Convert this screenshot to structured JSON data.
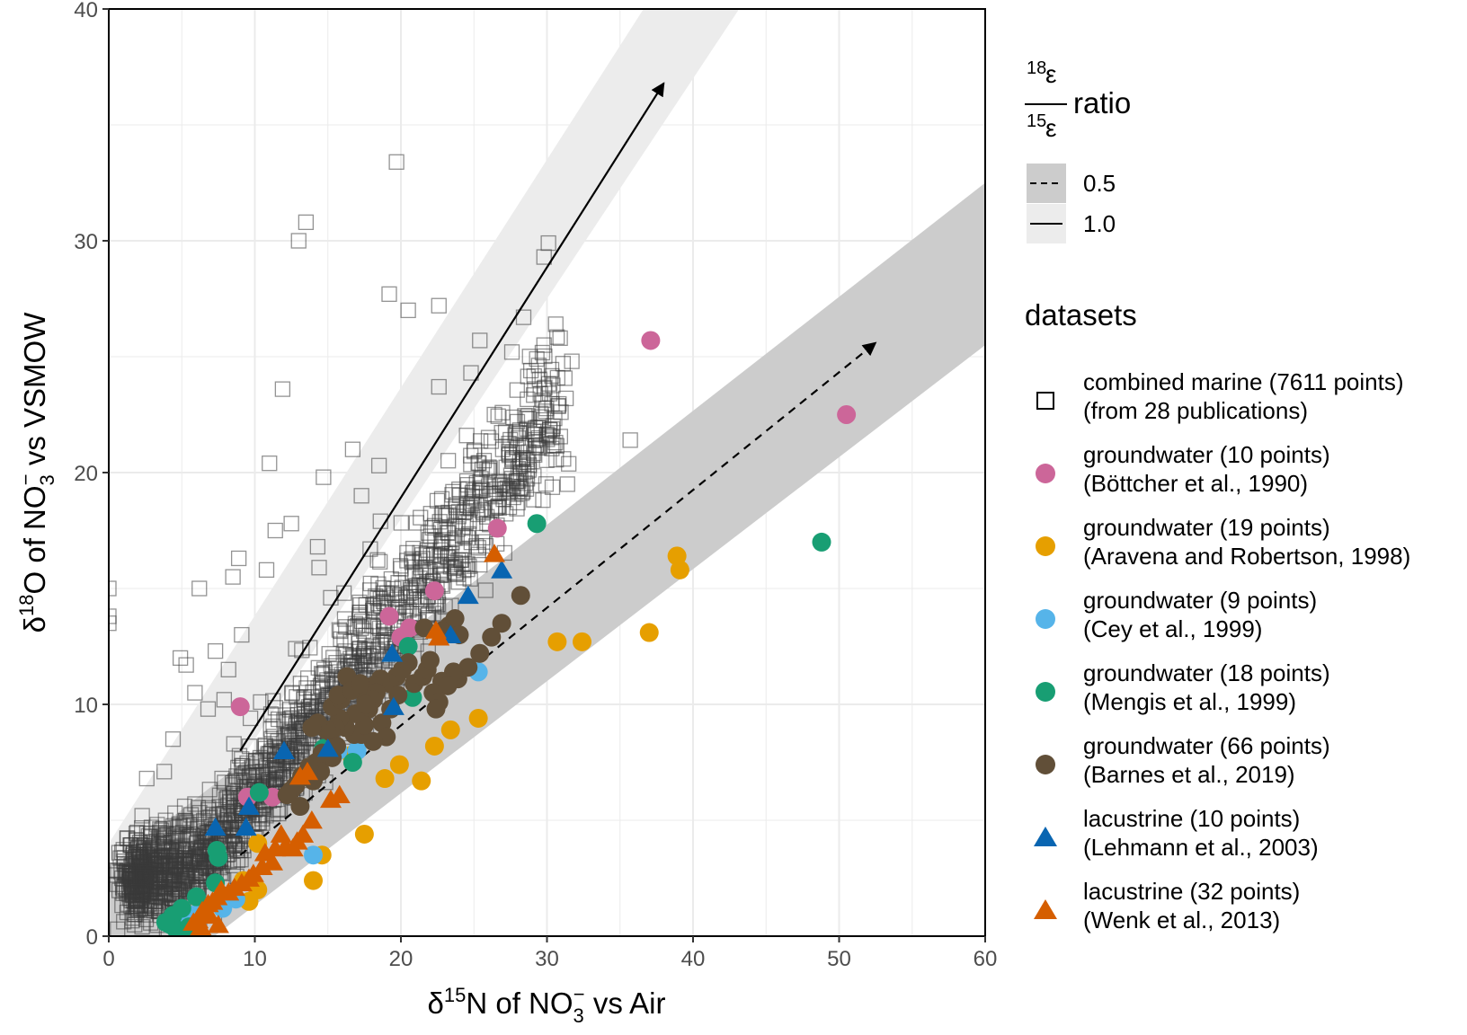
{
  "chart_data": {
    "type": "scatter",
    "x_axis": {
      "label": {
        "prefix": "δ",
        "sup": "15",
        "main": "N of NO",
        "sub": "3",
        "sup2": "−",
        "suffix": " vs Air"
      },
      "range": [
        0,
        60
      ],
      "ticks": [
        "0",
        "10",
        "20",
        "30",
        "40",
        "50",
        "60"
      ]
    },
    "y_axis": {
      "label": {
        "prefix": "δ",
        "sup": "18",
        "main": "O of NO",
        "sub": "3",
        "sup2": "−",
        "suffix": " vs VSMOW"
      },
      "range": [
        0,
        40
      ],
      "ticks": [
        "0",
        "10",
        "20",
        "30",
        "40"
      ]
    },
    "grid": true,
    "legend_position": "right",
    "ratio_legend": {
      "title": {
        "num_sup": "18",
        "den_sup": "15",
        "letter": "ε",
        "word": "ratio"
      },
      "items": [
        {
          "label": "0.5",
          "linestyle": "dashed",
          "band_color": "#cccccc"
        },
        {
          "label": "1.0",
          "linestyle": "solid",
          "band_color": "#ececec"
        }
      ]
    },
    "bands": [
      {
        "ratio": "1.0",
        "color": "#ececec",
        "x": [
          0,
          60
        ],
        "y_lower": [
          -1,
          56
        ],
        "y_upper": [
          4,
          63
        ]
      },
      {
        "ratio": "0.5",
        "color": "#cccccc",
        "x": [
          0,
          60
        ],
        "y_lower": [
          -3.5,
          25.5
        ],
        "y_upper": [
          3,
          32.5
        ]
      }
    ],
    "arrows": [
      {
        "ratio": "1.0",
        "linestyle": "solid",
        "start": [
          9,
          8
        ],
        "end": [
          38,
          36.8
        ]
      },
      {
        "ratio": "0.5",
        "linestyle": "dashed",
        "start": [
          9,
          3.5
        ],
        "end": [
          52.5,
          25.6
        ]
      }
    ],
    "datasets_title": "datasets",
    "series": [
      {
        "name": "combined marine (7611 points)",
        "name2": "(from 28 publications)",
        "shape": "open-square",
        "color": "#3a3a3a",
        "cloud": {
          "points": 1600,
          "x_range": [
            1.5,
            31
          ],
          "note": ""
        },
        "points": [
          [
            0,
            15
          ],
          [
            0,
            13.8
          ],
          [
            0,
            13.5
          ],
          [
            4.9,
            12
          ],
          [
            5.3,
            11.7
          ],
          [
            6.2,
            15
          ],
          [
            5.9,
            10.5
          ],
          [
            7.3,
            12.3
          ],
          [
            8.5,
            15.5
          ],
          [
            9.1,
            13
          ],
          [
            8.9,
            16.3
          ],
          [
            10.8,
            15.8
          ],
          [
            11,
            20.4
          ],
          [
            11.4,
            17.5
          ],
          [
            11.9,
            23.6
          ],
          [
            12.5,
            17.8
          ],
          [
            13.5,
            30.8
          ],
          [
            13,
            30
          ],
          [
            14.3,
            16.8
          ],
          [
            14.7,
            19.8
          ],
          [
            16.7,
            21
          ],
          [
            17.3,
            19
          ],
          [
            18.5,
            20.3
          ],
          [
            19.2,
            27.7
          ],
          [
            19.7,
            33.4
          ],
          [
            20.5,
            27
          ],
          [
            22.6,
            27.2
          ],
          [
            24.8,
            24.3
          ],
          [
            25.4,
            25.7
          ],
          [
            27.6,
            25.2
          ],
          [
            28.4,
            26.7
          ],
          [
            29.8,
            29.3
          ],
          [
            30.1,
            29.9
          ],
          [
            29.3,
            24.9
          ],
          [
            30.6,
            26.4
          ],
          [
            31.1,
            24.7
          ],
          [
            31.3,
            23.2
          ],
          [
            31.4,
            19.5
          ],
          [
            31.7,
            24.8
          ],
          [
            35.7,
            21.4
          ],
          [
            30.9,
            25.8
          ],
          [
            29.8,
            25.5
          ],
          [
            28.9,
            24.4
          ],
          [
            20.8,
            15.7
          ],
          [
            21.3,
            16.2
          ],
          [
            15.2,
            14.6
          ],
          [
            14.4,
            15.9
          ],
          [
            22.6,
            23.7
          ],
          [
            0.6,
            0.3
          ],
          [
            0.9,
            2.5
          ],
          [
            0.7,
            3.6
          ],
          [
            1.9,
            2.2
          ],
          [
            2.6,
            6.8
          ],
          [
            3.8,
            7.1
          ],
          [
            4.4,
            8.5
          ],
          [
            5.2,
            5.6
          ],
          [
            6.8,
            9.8
          ],
          [
            7.9,
            10.2
          ],
          [
            8.2,
            11.5
          ],
          [
            16.1,
            14.8
          ],
          [
            17.9,
            16.7
          ],
          [
            18.6,
            17.9
          ],
          [
            24.5,
            21.6
          ],
          [
            12.8,
            12.4
          ],
          [
            10.4,
            10.1
          ],
          [
            9.7,
            9.4
          ],
          [
            3.1,
            1.1
          ],
          [
            1.4,
            1.8
          ],
          [
            5.9,
            5.7
          ],
          [
            6.2,
            3.2
          ],
          [
            7.9,
            4.1
          ]
        ]
      },
      {
        "name": "groundwater (10 points)",
        "name2": "(Böttcher et al., 1990)",
        "shape": "circle",
        "color": "#cc6699",
        "points": [
          [
            37.1,
            25.7
          ],
          [
            50.5,
            22.5
          ],
          [
            26.6,
            17.6
          ],
          [
            22.3,
            14.9
          ],
          [
            19.2,
            13.8
          ],
          [
            20.6,
            13.3
          ],
          [
            9,
            9.9
          ],
          [
            9.5,
            6
          ],
          [
            11.2,
            6
          ],
          [
            20,
            12.9
          ]
        ]
      },
      {
        "name": "groundwater (19 points)",
        "name2": "(Aravena and Robertson, 1998)",
        "shape": "circle",
        "color": "#e69f00",
        "points": [
          [
            38.9,
            16.4
          ],
          [
            39.1,
            15.8
          ],
          [
            37,
            13.1
          ],
          [
            30.7,
            12.7
          ],
          [
            32.4,
            12.7
          ],
          [
            25.3,
            9.4
          ],
          [
            23.4,
            8.9
          ],
          [
            22.3,
            8.2
          ],
          [
            19.9,
            7.4
          ],
          [
            18.9,
            6.8
          ],
          [
            21.4,
            6.7
          ],
          [
            17.5,
            4.4
          ],
          [
            14.6,
            3.5
          ],
          [
            14,
            2.4
          ],
          [
            9.2,
            2.4
          ],
          [
            10.2,
            4
          ],
          [
            16.6,
            7.8
          ],
          [
            10.2,
            2
          ],
          [
            9.6,
            1.5
          ]
        ]
      },
      {
        "name": "groundwater (9 points)",
        "name2": "(Cey et al., 1999)",
        "shape": "circle",
        "color": "#56b4e9",
        "points": [
          [
            25.3,
            11.4
          ],
          [
            17,
            8
          ],
          [
            15.7,
            8
          ],
          [
            14,
            3.5
          ],
          [
            8.7,
            1.6
          ],
          [
            7.8,
            1.2
          ],
          [
            6.1,
            1
          ],
          [
            5.2,
            0.6
          ],
          [
            4.6,
            0.5
          ]
        ]
      },
      {
        "name": "groundwater (18 points)",
        "name2": "(Mengis et al., 1999)",
        "shape": "circle",
        "color": "#189e73",
        "points": [
          [
            48.8,
            17
          ],
          [
            29.3,
            17.8
          ],
          [
            20.5,
            12.5
          ],
          [
            20.8,
            10.3
          ],
          [
            16.7,
            7.5
          ],
          [
            14.7,
            8.1
          ],
          [
            10.3,
            6.2
          ],
          [
            7.4,
            3.7
          ],
          [
            7.5,
            3.4
          ],
          [
            7.3,
            2.3
          ],
          [
            6,
            1.7
          ],
          [
            5,
            1.2
          ],
          [
            4.4,
            0.9
          ],
          [
            4.2,
            0.5
          ],
          [
            4.6,
            0.3
          ],
          [
            5.5,
            0.4
          ],
          [
            3.9,
            0.6
          ],
          [
            4.9,
            0.2
          ]
        ]
      },
      {
        "name": "groundwater (66 points)",
        "name2": "(Barnes et al., 2019)",
        "shape": "circle",
        "color": "#614f38",
        "points": [
          [
            28.2,
            14.7
          ],
          [
            26.9,
            13.5
          ],
          [
            26.2,
            12.9
          ],
          [
            25.4,
            12.2
          ],
          [
            24.6,
            11.6
          ],
          [
            23.9,
            11.1
          ],
          [
            23.6,
            11.4
          ],
          [
            22.8,
            11
          ],
          [
            23.2,
            10.8
          ],
          [
            22.2,
            10.5
          ],
          [
            21.6,
            13.3
          ],
          [
            22.9,
            13.2
          ],
          [
            23.3,
            13.4
          ],
          [
            23.7,
            13.7
          ],
          [
            24,
            13
          ],
          [
            20.5,
            11.8
          ],
          [
            20.1,
            11.5
          ],
          [
            19.7,
            11.2
          ],
          [
            19.2,
            10.9
          ],
          [
            19.8,
            10.4
          ],
          [
            18.6,
            11.1
          ],
          [
            18.1,
            10.8
          ],
          [
            17.6,
            10.2
          ],
          [
            18.3,
            10.5
          ],
          [
            17.8,
            9.8
          ],
          [
            19.3,
            9.8
          ],
          [
            18.7,
            9.2
          ],
          [
            19,
            8.6
          ],
          [
            18.1,
            8.4
          ],
          [
            17.3,
            8.7
          ],
          [
            16.8,
            8.7
          ],
          [
            16.2,
            9
          ],
          [
            17.5,
            9.1
          ],
          [
            16.9,
            9.6
          ],
          [
            15.8,
            9.4
          ],
          [
            15.5,
            9
          ],
          [
            15.2,
            8.8
          ],
          [
            14.9,
            8.9
          ],
          [
            14.3,
            9.2
          ],
          [
            13.9,
            9
          ],
          [
            15.3,
            9.9
          ],
          [
            15.9,
            10.2
          ],
          [
            16.3,
            11.2
          ],
          [
            15.7,
            10.4
          ],
          [
            16.6,
            10.6
          ],
          [
            17.2,
            10.9
          ],
          [
            15.6,
            8.2
          ],
          [
            15.3,
            7.7
          ],
          [
            14.6,
            7.9
          ],
          [
            14.2,
            7.5
          ],
          [
            14.5,
            7.1
          ],
          [
            14,
            6.7
          ],
          [
            13.7,
            7.3
          ],
          [
            13.2,
            6.9
          ],
          [
            12.8,
            6.5
          ],
          [
            12.5,
            6.3
          ],
          [
            12.2,
            6.1
          ],
          [
            13.1,
            5.6
          ],
          [
            22.6,
            10.1
          ],
          [
            22.4,
            9.8
          ],
          [
            18.1,
            10.2
          ],
          [
            17.6,
            10
          ],
          [
            20.9,
            10.9
          ],
          [
            21.5,
            11.2
          ],
          [
            21.8,
            11.5
          ],
          [
            22,
            11.9
          ]
        ]
      },
      {
        "name": "lacustrine (10 points)",
        "name2": "(Lehmann et al., 2003)",
        "shape": "triangle",
        "color": "#0965b1",
        "points": [
          [
            26.9,
            15.8
          ],
          [
            24.6,
            14.7
          ],
          [
            23.4,
            13
          ],
          [
            19.4,
            12.2
          ],
          [
            19.5,
            9.9
          ],
          [
            15,
            8.1
          ],
          [
            12,
            8
          ],
          [
            9.6,
            5.6
          ],
          [
            9.4,
            4.7
          ],
          [
            7.3,
            4.7
          ]
        ]
      },
      {
        "name": "lacustrine (32 points)",
        "name2": "(Wenk et al., 2013)",
        "shape": "triangle",
        "color": "#d55e00",
        "points": [
          [
            26.4,
            16.5
          ],
          [
            22.4,
            13.2
          ],
          [
            22.6,
            12.9
          ],
          [
            13.6,
            7.1
          ],
          [
            13.1,
            6.9
          ],
          [
            15.8,
            6.1
          ],
          [
            15.2,
            5.9
          ],
          [
            13.9,
            5
          ],
          [
            13.3,
            4.4
          ],
          [
            12.9,
            4.1
          ],
          [
            12.1,
            3.9
          ],
          [
            11.4,
            3.8
          ],
          [
            10.7,
            3.6
          ],
          [
            11.2,
            3.2
          ],
          [
            10.5,
            3
          ],
          [
            9.9,
            2.7
          ],
          [
            9.6,
            2.5
          ],
          [
            9.1,
            2.3
          ],
          [
            8.6,
            2.1
          ],
          [
            8.2,
            1.9
          ],
          [
            7.7,
            2
          ],
          [
            7.4,
            1.7
          ],
          [
            7.1,
            1.5
          ],
          [
            6.8,
            1.4
          ],
          [
            6.4,
            1.1
          ],
          [
            6.9,
            0.9
          ],
          [
            6.1,
            0.7
          ],
          [
            5.8,
            0.6
          ],
          [
            6.3,
            0.4
          ],
          [
            7.5,
            0.5
          ],
          [
            12.6,
            3.8
          ],
          [
            11.8,
            4.4
          ]
        ]
      }
    ]
  }
}
